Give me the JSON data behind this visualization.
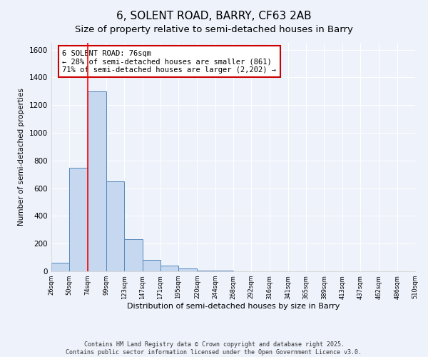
{
  "title1": "6, SOLENT ROAD, BARRY, CF63 2AB",
  "title2": "Size of property relative to semi-detached houses in Barry",
  "xlabel": "Distribution of semi-detached houses by size in Barry",
  "ylabel": "Number of semi-detached properties",
  "bar_edges": [
    26,
    50,
    74,
    99,
    123,
    147,
    171,
    195,
    220,
    244,
    268,
    292,
    316,
    341,
    365,
    389,
    413,
    437,
    462,
    486,
    510
  ],
  "bar_heights": [
    60,
    750,
    1300,
    650,
    230,
    80,
    40,
    20,
    5,
    3,
    2,
    1,
    1,
    1,
    1,
    0,
    0,
    0,
    0,
    0
  ],
  "bar_color": "#c5d8f0",
  "bar_edge_color": "#5588bb",
  "red_line_x": 74,
  "annotation_text": "6 SOLENT ROAD: 76sqm\n← 28% of semi-detached houses are smaller (861)\n71% of semi-detached houses are larger (2,202) →",
  "annotation_box_color": "#ffffff",
  "annotation_box_edge": "#cc0000",
  "ylim": [
    0,
    1650
  ],
  "footnote1": "Contains HM Land Registry data © Crown copyright and database right 2025.",
  "footnote2": "Contains public sector information licensed under the Open Government Licence v3.0.",
  "bg_color": "#eef2fb",
  "grid_color": "#ffffff",
  "title1_fontsize": 11,
  "title2_fontsize": 9.5
}
